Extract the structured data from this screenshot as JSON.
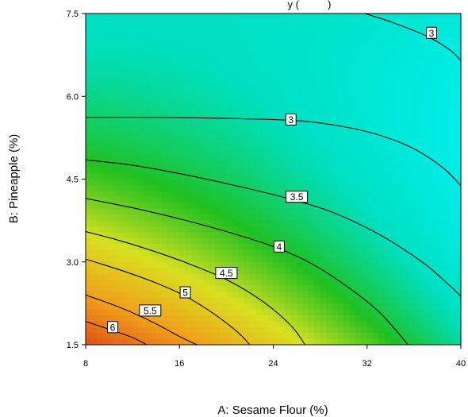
{
  "chart_data": {
    "type": "heatmap",
    "title": "y (          )",
    "xlabel": "A: Sesame Flour (%)",
    "ylabel": "B: Pineapple (%)",
    "xlim": [
      8,
      40
    ],
    "ylim": [
      1.5,
      7.5
    ],
    "x_ticks": [
      "8",
      "16",
      "24",
      "32",
      "40"
    ],
    "y_ticks": [
      "1.5",
      "3.0",
      "4.5",
      "6.0",
      "7.5"
    ],
    "colorscale": [
      "#e0501a",
      "#f0a01a",
      "#d8e020",
      "#20c020",
      "#00e0c0",
      "#00f0f0",
      "#1050e0"
    ],
    "contours": [
      {
        "level": 3,
        "label": "3",
        "points": [
          [
            31.8,
            7.5
          ],
          [
            34.0,
            7.35
          ],
          [
            37.0,
            7.1
          ],
          [
            39.0,
            6.85
          ],
          [
            40.0,
            6.65
          ]
        ],
        "label_at": [
          37.5,
          7.15
        ]
      },
      {
        "level": 3,
        "label": "3",
        "points": [
          [
            8,
            5.62
          ],
          [
            14,
            5.62
          ],
          [
            20,
            5.6
          ],
          [
            26,
            5.56
          ],
          [
            30,
            5.45
          ],
          [
            33,
            5.3
          ],
          [
            36,
            5.05
          ],
          [
            38.5,
            4.7
          ],
          [
            40,
            4.38
          ]
        ],
        "label_at": [
          25.5,
          5.58
        ]
      },
      {
        "level": 3.5,
        "label": "3.5",
        "points": [
          [
            8,
            4.85
          ],
          [
            12,
            4.75
          ],
          [
            16,
            4.6
          ],
          [
            20,
            4.42
          ],
          [
            24,
            4.22
          ],
          [
            28,
            3.98
          ],
          [
            31,
            3.72
          ],
          [
            34,
            3.38
          ],
          [
            37,
            2.95
          ],
          [
            39,
            2.58
          ],
          [
            40,
            2.38
          ]
        ],
        "label_at": [
          26.0,
          4.18
        ]
      },
      {
        "level": 4,
        "label": "4",
        "points": [
          [
            8,
            4.15
          ],
          [
            12,
            3.98
          ],
          [
            16,
            3.78
          ],
          [
            20,
            3.55
          ],
          [
            24,
            3.28
          ],
          [
            27,
            3.0
          ],
          [
            30,
            2.6
          ],
          [
            33,
            2.1
          ],
          [
            35.5,
            1.5
          ]
        ],
        "label_at": [
          24.5,
          3.28
        ]
      },
      {
        "level": 4.5,
        "label": "4.5",
        "points": [
          [
            8,
            3.55
          ],
          [
            11,
            3.38
          ],
          [
            14,
            3.18
          ],
          [
            17,
            2.95
          ],
          [
            20,
            2.68
          ],
          [
            23,
            2.3
          ],
          [
            25.5,
            1.85
          ],
          [
            26.7,
            1.5
          ]
        ],
        "label_at": [
          20.0,
          2.8
        ]
      },
      {
        "level": 5,
        "label": "5",
        "points": [
          [
            8,
            3.05
          ],
          [
            11,
            2.85
          ],
          [
            14,
            2.62
          ],
          [
            16.5,
            2.38
          ],
          [
            19,
            2.05
          ],
          [
            21,
            1.72
          ],
          [
            22,
            1.5
          ]
        ],
        "label_at": [
          16.5,
          2.45
        ]
      },
      {
        "level": 5.5,
        "label": "5.5",
        "points": [
          [
            8,
            2.4
          ],
          [
            10,
            2.25
          ],
          [
            12,
            2.08
          ],
          [
            14,
            1.88
          ],
          [
            16,
            1.65
          ],
          [
            17.5,
            1.5
          ]
        ],
        "label_at": [
          13.5,
          2.12
        ]
      },
      {
        "level": 6,
        "label": "6",
        "points": [
          [
            8,
            1.92
          ],
          [
            10,
            1.78
          ],
          [
            12,
            1.63
          ],
          [
            13.2,
            1.5
          ]
        ],
        "label_at": [
          10.3,
          1.82
        ]
      }
    ]
  }
}
